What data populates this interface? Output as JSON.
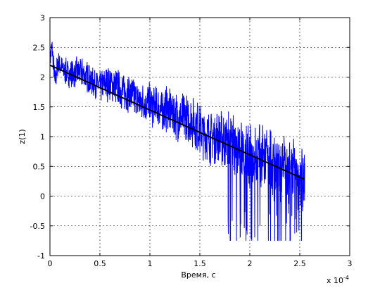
{
  "chart_data": {
    "type": "line",
    "title": "",
    "xlabel": "Время, с",
    "ylabel": "z(1)",
    "x_exponent_label": "x 10",
    "x_exponent_power": "-4",
    "xlim": [
      0,
      3
    ],
    "ylim": [
      -1,
      3
    ],
    "x_ticks": [
      "0",
      "0.5",
      "1",
      "1.5",
      "2",
      "2.5",
      "3"
    ],
    "y_ticks": [
      "-1",
      "-0.5",
      "0",
      "0.5",
      "1",
      "1.5",
      "2",
      "2.5",
      "3"
    ],
    "x_tick_values": [
      0,
      0.5,
      1,
      1.5,
      2,
      2.5,
      3
    ],
    "y_tick_values": [
      -1,
      -0.5,
      0,
      0.5,
      1,
      1.5,
      2,
      2.5,
      3
    ],
    "grid": true,
    "colors": {
      "signal": "#0000ff",
      "trend": "#000000",
      "grid": "#000000"
    },
    "series": [
      {
        "style": "noisy",
        "color": "#0000ff",
        "x": [
          0,
          0.02,
          0.05,
          0.08,
          0.1,
          0.15,
          0.2,
          0.3,
          0.4,
          0.5,
          0.6,
          0.7,
          0.8,
          0.9,
          1.0,
          1.1,
          1.2,
          1.3,
          1.4,
          1.5,
          1.6,
          1.7,
          1.8,
          1.9,
          2.0,
          2.1,
          2.2,
          2.3,
          2.4,
          2.5,
          2.55
        ],
        "y": [
          2.3,
          2.5,
          1.9,
          2.25,
          2.2,
          2.1,
          2.05,
          2.1,
          1.95,
          1.85,
          1.9,
          1.8,
          1.7,
          1.6,
          1.55,
          1.45,
          1.45,
          1.3,
          1.3,
          1.1,
          1.0,
          1.0,
          0.9,
          0.8,
          0.65,
          0.65,
          0.55,
          0.5,
          0.45,
          0.3,
          0.3
        ],
        "y_min": -0.75,
        "y_max": 2.6
      },
      {
        "style": "line",
        "color": "#000000",
        "x": [
          0,
          2.55
        ],
        "y": [
          2.2,
          0.28
        ]
      }
    ]
  }
}
